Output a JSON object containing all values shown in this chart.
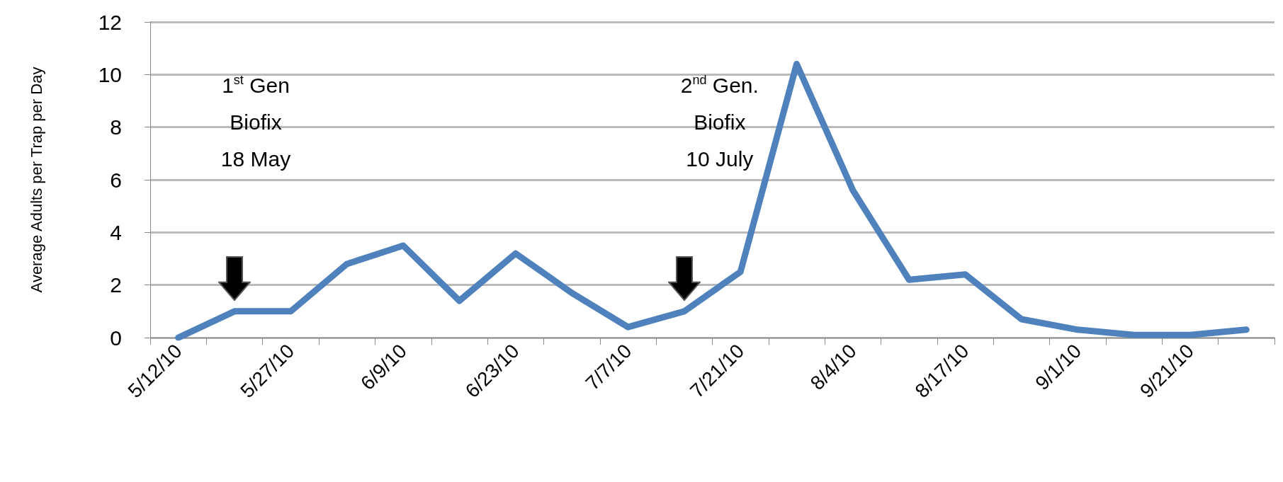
{
  "chart_data": {
    "type": "line",
    "ylabel": "Average Adults per Trap per Day",
    "categories": [
      "5/12/10",
      null,
      "5/27/10",
      null,
      "6/9/10",
      null,
      "6/23/10",
      null,
      "7/7/10",
      null,
      "7/21/10",
      null,
      "8/4/10",
      null,
      "8/17/10",
      null,
      "9/1/10",
      null,
      "9/21/10",
      null
    ],
    "series": [
      {
        "color": "#4f81bd",
        "values": [
          0,
          1.0,
          1.0,
          2.8,
          3.5,
          1.4,
          3.2,
          1.7,
          0.4,
          1.0,
          2.5,
          10.4,
          5.6,
          2.2,
          2.4,
          0.7,
          0.3,
          0.1,
          0.1,
          0.3
        ]
      }
    ],
    "ylim": [
      0,
      12
    ],
    "yticks": [
      0,
      2,
      4,
      6,
      8,
      10,
      12
    ],
    "grid": "y",
    "marker": "none",
    "line_style": "solid",
    "annotations": [
      "1$^{st}$ Gen\nBiofix\n18 May",
      "2$^{nd}$ Gen.\nBiofix\n10 July"
    ]
  }
}
